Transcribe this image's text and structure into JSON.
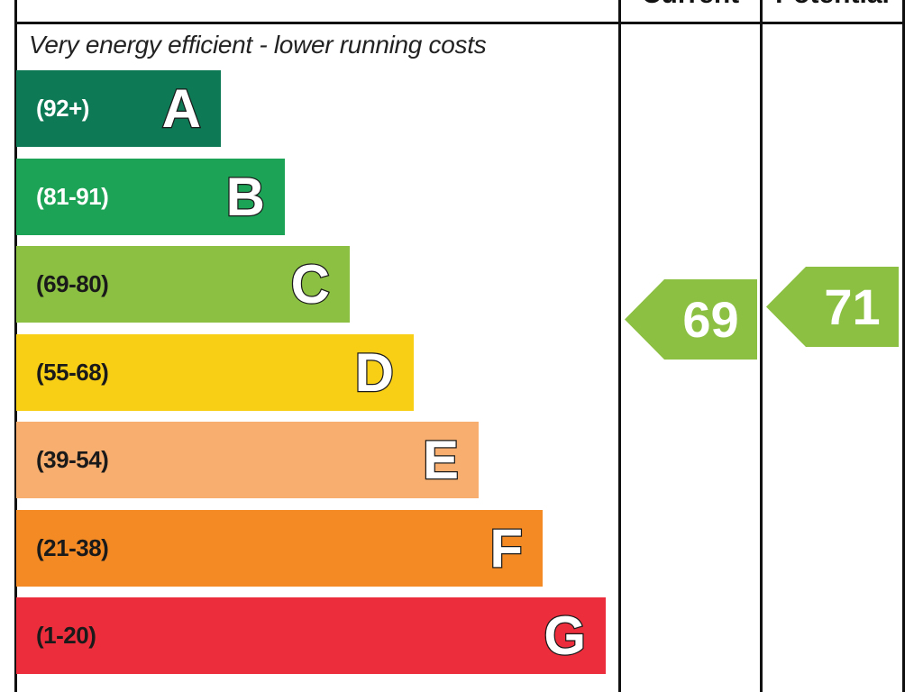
{
  "header": {
    "current_label": "Current",
    "potential_label": "Potential"
  },
  "subtitle": "Very energy efficient - lower running costs",
  "chart_data": {
    "type": "bar",
    "categories": [
      "A",
      "B",
      "C",
      "D",
      "E",
      "F",
      "G"
    ],
    "ranges": [
      "(92+)",
      "(81-91)",
      "(69-80)",
      "(55-68)",
      "(39-54)",
      "(21-38)",
      "(1-20)"
    ],
    "bands": [
      {
        "letter": "A",
        "range": "(92+)",
        "color": "#0e7a55",
        "range_text_color": "#ffffff"
      },
      {
        "letter": "B",
        "range": "(81-91)",
        "color": "#1da356",
        "range_text_color": "#ffffff"
      },
      {
        "letter": "C",
        "range": "(69-80)",
        "color": "#8cc043",
        "range_text_color": "#1a1a1a"
      },
      {
        "letter": "D",
        "range": "(55-68)",
        "color": "#f9cf16",
        "range_text_color": "#1a1a1a"
      },
      {
        "letter": "E",
        "range": "(39-54)",
        "color": "#f8ae6e",
        "range_text_color": "#1a1a1a"
      },
      {
        "letter": "F",
        "range": "(21-38)",
        "color": "#f48a24",
        "range_text_color": "#1a1a1a"
      },
      {
        "letter": "G",
        "range": "(1-20)",
        "color": "#ec2e3c",
        "range_text_color": "#1a1a1a"
      }
    ],
    "current": {
      "value": 69,
      "band": "C",
      "color": "#8cc043"
    },
    "potential": {
      "value": 71,
      "band": "C",
      "color": "#8cc043"
    }
  }
}
